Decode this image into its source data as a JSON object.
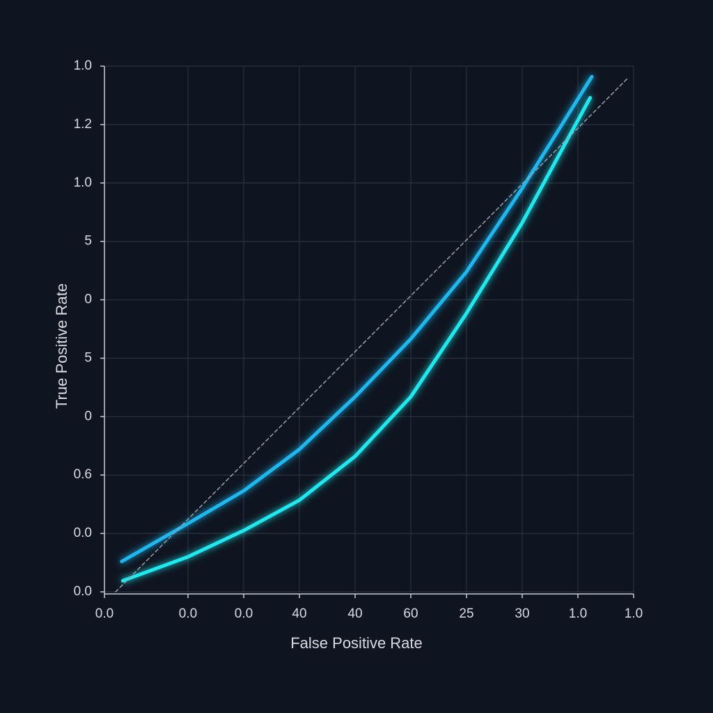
{
  "chart_data": {
    "type": "line",
    "x_label": "False Positive Rate",
    "y_label": "True Positive Rate",
    "xlim": [
      0,
      9.5
    ],
    "xticks": [
      {
        "value": 0,
        "label": "0.0"
      },
      {
        "value": 1.5,
        "label": "0.0"
      },
      {
        "value": 2.5,
        "label": "0.0"
      },
      {
        "value": 3.5,
        "label": "40"
      },
      {
        "value": 4.5,
        "label": "40"
      },
      {
        "value": 5.5,
        "label": "60"
      },
      {
        "value": 6.5,
        "label": "25"
      },
      {
        "value": 7.5,
        "label": "30"
      },
      {
        "value": 8.5,
        "label": "1.0"
      },
      {
        "value": 9.5,
        "label": "1.0"
      }
    ],
    "ylim": [
      0,
      9
    ],
    "yticks": [
      {
        "value": 0,
        "label": "0.0"
      },
      {
        "value": 1,
        "label": "0.0"
      },
      {
        "value": 2,
        "label": "0.6"
      },
      {
        "value": 3,
        "label": "0"
      },
      {
        "value": 4,
        "label": "5"
      },
      {
        "value": 5,
        "label": "0"
      },
      {
        "value": 6,
        "label": "5"
      },
      {
        "value": 7,
        "label": "1.0"
      },
      {
        "value": 8,
        "label": "1.2"
      },
      {
        "value": 9,
        "label": "1.0"
      }
    ],
    "grid": true,
    "series": [
      {
        "color": "#1ab8f0",
        "x": [
          0.31,
          1.5,
          2.5,
          3.5,
          4.5,
          5.5,
          6.5,
          7.5,
          8.75
        ],
        "values": [
          0.52,
          1.17,
          1.73,
          2.44,
          3.34,
          4.33,
          5.48,
          6.91,
          8.82
        ]
      },
      {
        "color": "#1de9f0",
        "x": [
          0.33,
          1.5,
          2.5,
          3.5,
          4.5,
          5.5,
          6.5,
          7.5,
          8.72
        ],
        "values": [
          0.19,
          0.6,
          1.05,
          1.57,
          2.32,
          3.34,
          4.77,
          6.32,
          8.46
        ]
      },
      {
        "color": "#9aa3ad",
        "dashed": true,
        "x": [
          0.2,
          9.4
        ],
        "values": [
          0,
          8.8
        ]
      }
    ]
  }
}
